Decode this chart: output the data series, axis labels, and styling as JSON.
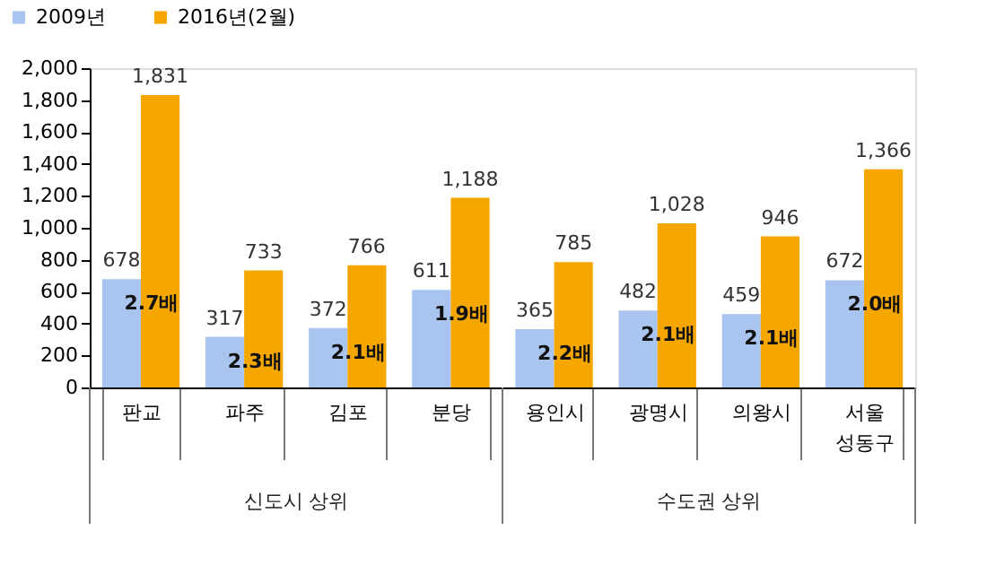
{
  "chart_data": {
    "type": "bar",
    "categories": [
      "판교",
      "파주",
      "김포",
      "분당",
      "용인시",
      "광명시",
      "의왕시",
      "서울\n성동구"
    ],
    "series": [
      {
        "name": "2009년",
        "color": "#a9c4ee",
        "values": [
          678,
          317,
          372,
          611,
          365,
          482,
          459,
          672
        ],
        "value_labels": [
          "678",
          "317",
          "372",
          "611",
          "365",
          "482",
          "459",
          "672"
        ]
      },
      {
        "name": "2016년(2월)",
        "color": "#f5a700",
        "values": [
          1831,
          733,
          766,
          1188,
          785,
          1028,
          946,
          1366
        ],
        "value_labels": [
          "1,831",
          "733",
          "766",
          "1,188",
          "785",
          "1,028",
          "946",
          "1,366"
        ]
      }
    ],
    "ylim": [
      0,
      2000
    ],
    "yticks": [
      0,
      200,
      400,
      600,
      800,
      {
        "value": 1000,
        "label": "1,000"
      },
      {
        "value": 1200,
        "label": "1,200"
      },
      {
        "value": 1400,
        "label": "1,400"
      },
      {
        "value": 1600,
        "label": "1,600"
      },
      {
        "value": 1800,
        "label": "1,800"
      },
      {
        "value": 2000,
        "label": "2,000"
      }
    ],
    "grid": false,
    "legend": "top left",
    "annotations": [
      "2.7배",
      "2.3배",
      "2.1배",
      "1.9배",
      "2.2배",
      "2.1배",
      "2.1배",
      "2.0배",
      "신도시 상위",
      "수도권 상위"
    ]
  }
}
